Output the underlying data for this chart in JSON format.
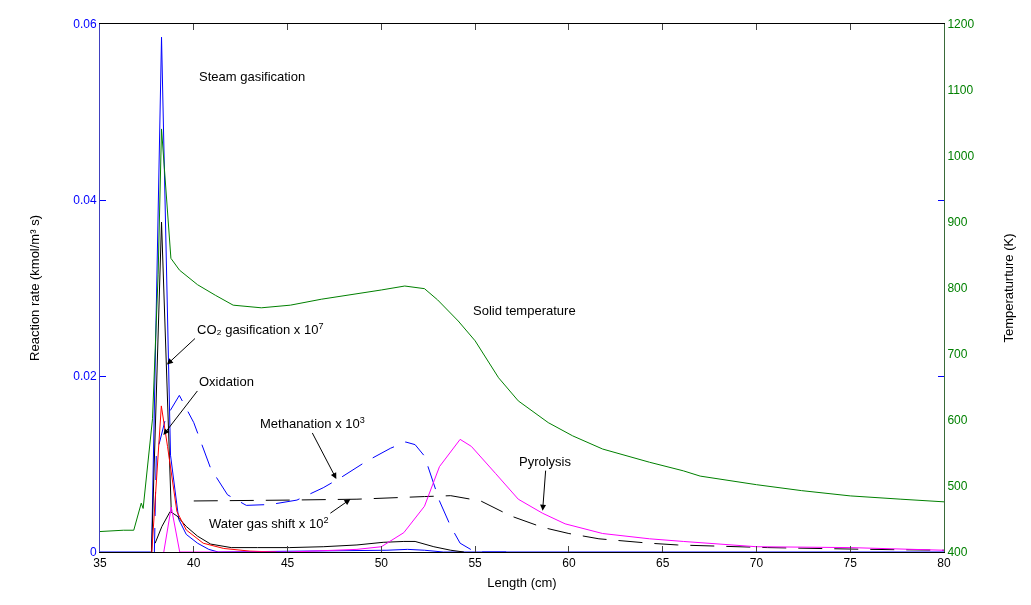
{
  "chart_data": {
    "type": "line",
    "xlabel": "Length (cm)",
    "ylabel": "Reaction rate (kmol/m³ s)",
    "y2label": "Temperaturture (K)",
    "xlim": [
      35,
      80
    ],
    "xticks": [
      35,
      40,
      45,
      50,
      55,
      60,
      65,
      70,
      75,
      80
    ],
    "ylim": [
      0,
      0.06
    ],
    "yticks": [
      0,
      0.02,
      0.04,
      0.06
    ],
    "y2lim": [
      400,
      1200
    ],
    "y2ticks": [
      400,
      500,
      600,
      700,
      800,
      900,
      1000,
      1100,
      1200
    ],
    "grid": false,
    "marker": "none",
    "series": [
      {
        "color": "#008000",
        "axis": "y2",
        "line_style": "solid",
        "x": [
          35,
          36.25,
          36.8,
          37.2,
          37.3,
          37.8,
          38.1,
          38.28,
          38.78,
          39.24,
          40.2,
          41.15,
          42.1,
          43.6,
          45.15,
          46.8,
          50,
          51.25,
          52.3,
          53,
          54.1,
          55,
          56.25,
          57.3,
          58.9,
          60.2,
          61.8,
          64.3,
          66.1,
          67,
          70,
          72.4,
          75,
          77.7,
          80
        ],
        "values": [
          431,
          433,
          433,
          474,
          466,
          602,
          821,
          1041,
          845,
          827,
          805,
          789,
          774,
          770,
          774,
          783,
          797,
          803,
          799,
          782,
          750,
          720,
          664,
          629,
          596,
          576,
          556,
          536,
          523,
          515,
          502,
          493,
          485,
          480,
          476
        ]
      },
      {
        "color": "#0000ff",
        "line_style": "solid",
        "x": [
          35,
          37.75,
          38.28,
          38.76,
          39.2,
          39.6,
          40.2,
          40.8,
          41.3,
          50.3,
          51.4,
          52.3,
          53.3,
          80
        ],
        "values": [
          0,
          0,
          0.0585,
          0.011,
          0.0037,
          0.002,
          0.001,
          0.0003,
          0,
          0.0002,
          0.0003,
          0.0002,
          0,
          0
        ]
      },
      {
        "color": "#0000ff",
        "line_style": "dashed",
        "x": [
          37.9,
          38.0,
          38.5,
          39.23,
          40,
          40.9,
          41.8,
          42.8,
          44.1,
          45.5,
          46.9,
          47.8,
          49.2,
          50.5,
          51.3,
          51.8,
          52.3,
          53.1,
          53.7,
          54.2,
          55,
          57
        ],
        "values": [
          0,
          0.011,
          0.0152,
          0.0178,
          0.0147,
          0.0095,
          0.0065,
          0.0053,
          0.0054,
          0.0059,
          0.0073,
          0.0084,
          0.0103,
          0.0118,
          0.0125,
          0.0122,
          0.0109,
          0.0058,
          0.0029,
          0.001,
          0,
          0
        ]
      },
      {
        "color": "#000000",
        "line_style": "solid",
        "x": [
          37.75,
          38.28,
          38.8
        ],
        "values": [
          0,
          0.0375,
          0.0046
        ]
      },
      {
        "color": "#000000",
        "line_style": "solid",
        "x": [
          37.94,
          38.3,
          38.74,
          39.1,
          39.6,
          40.2,
          40.9,
          42,
          43.4,
          45.1,
          46.9,
          48.7,
          50.1,
          51.2,
          51.8,
          52.8,
          53.7,
          54.4
        ],
        "values": [
          0.001,
          0.0029,
          0.0046,
          0.0041,
          0.0029,
          0.0018,
          0.0009,
          0.0005,
          0.0005,
          0.0005,
          0.0006,
          0.0008,
          0.0011,
          0.0012,
          0.0012,
          0.0006,
          0.0002,
          0
        ]
      },
      {
        "color": "#000000",
        "line_style": "dashed",
        "x": [
          40,
          45.1,
          48.7,
          52.3,
          53.7,
          55.3,
          56.9,
          58.6,
          60,
          61.6,
          64.3,
          65.8,
          70.6,
          76,
          80
        ],
        "values": [
          0.0058,
          0.0059,
          0.006,
          0.0063,
          0.0064,
          0.0058,
          0.0041,
          0.0028,
          0.0021,
          0.0015,
          0.001,
          0.0008,
          0.0005,
          0.0003,
          0.0002
        ]
      },
      {
        "color": "#ff0000",
        "line_style": "solid",
        "x": [
          37.76,
          38.27,
          38.6,
          39.1,
          39.6,
          40.5,
          41.6,
          43,
          44.4
        ],
        "values": [
          0,
          0.0166,
          0.012,
          0.0046,
          0.0025,
          0.001,
          0.0004,
          0.0001,
          0
        ]
      },
      {
        "color": "#ff00ff",
        "line_style": "solid",
        "x": [
          38.4,
          38.8,
          39.25,
          41,
          45.1,
          48.7,
          50,
          51.2,
          52.3,
          53.1,
          54.2,
          54.8,
          56.1,
          57.3,
          58.6,
          59.8,
          61.8,
          64.3,
          66.1,
          70,
          75,
          80
        ],
        "values": [
          0,
          0.0051,
          0,
          0,
          0,
          0.0003,
          0.0006,
          0.0022,
          0.0052,
          0.0097,
          0.0128,
          0.012,
          0.0089,
          0.006,
          0.0044,
          0.0032,
          0.0021,
          0.0015,
          0.0012,
          0.0006,
          0.0005,
          0.0002
        ]
      }
    ],
    "annotations": [
      "Steam gasification",
      "Solid temperature",
      {
        "text": "CO₂ gasification x 10$^{7}$",
        "x": 38.57,
        "y": 0.0213
      },
      {
        "text": "Oxidation",
        "x": 38.38,
        "y": 0.0133
      },
      {
        "text": "Methanation x 10$^{3}$",
        "x": 47.6,
        "y": 0.0083
      },
      {
        "text": "Water gas shift x 10$^{2}$",
        "x": 48.35,
        "y": 0.006
      },
      {
        "text": "Pyrolysis",
        "x": 58.6,
        "y": 0.0047
      }
    ]
  }
}
